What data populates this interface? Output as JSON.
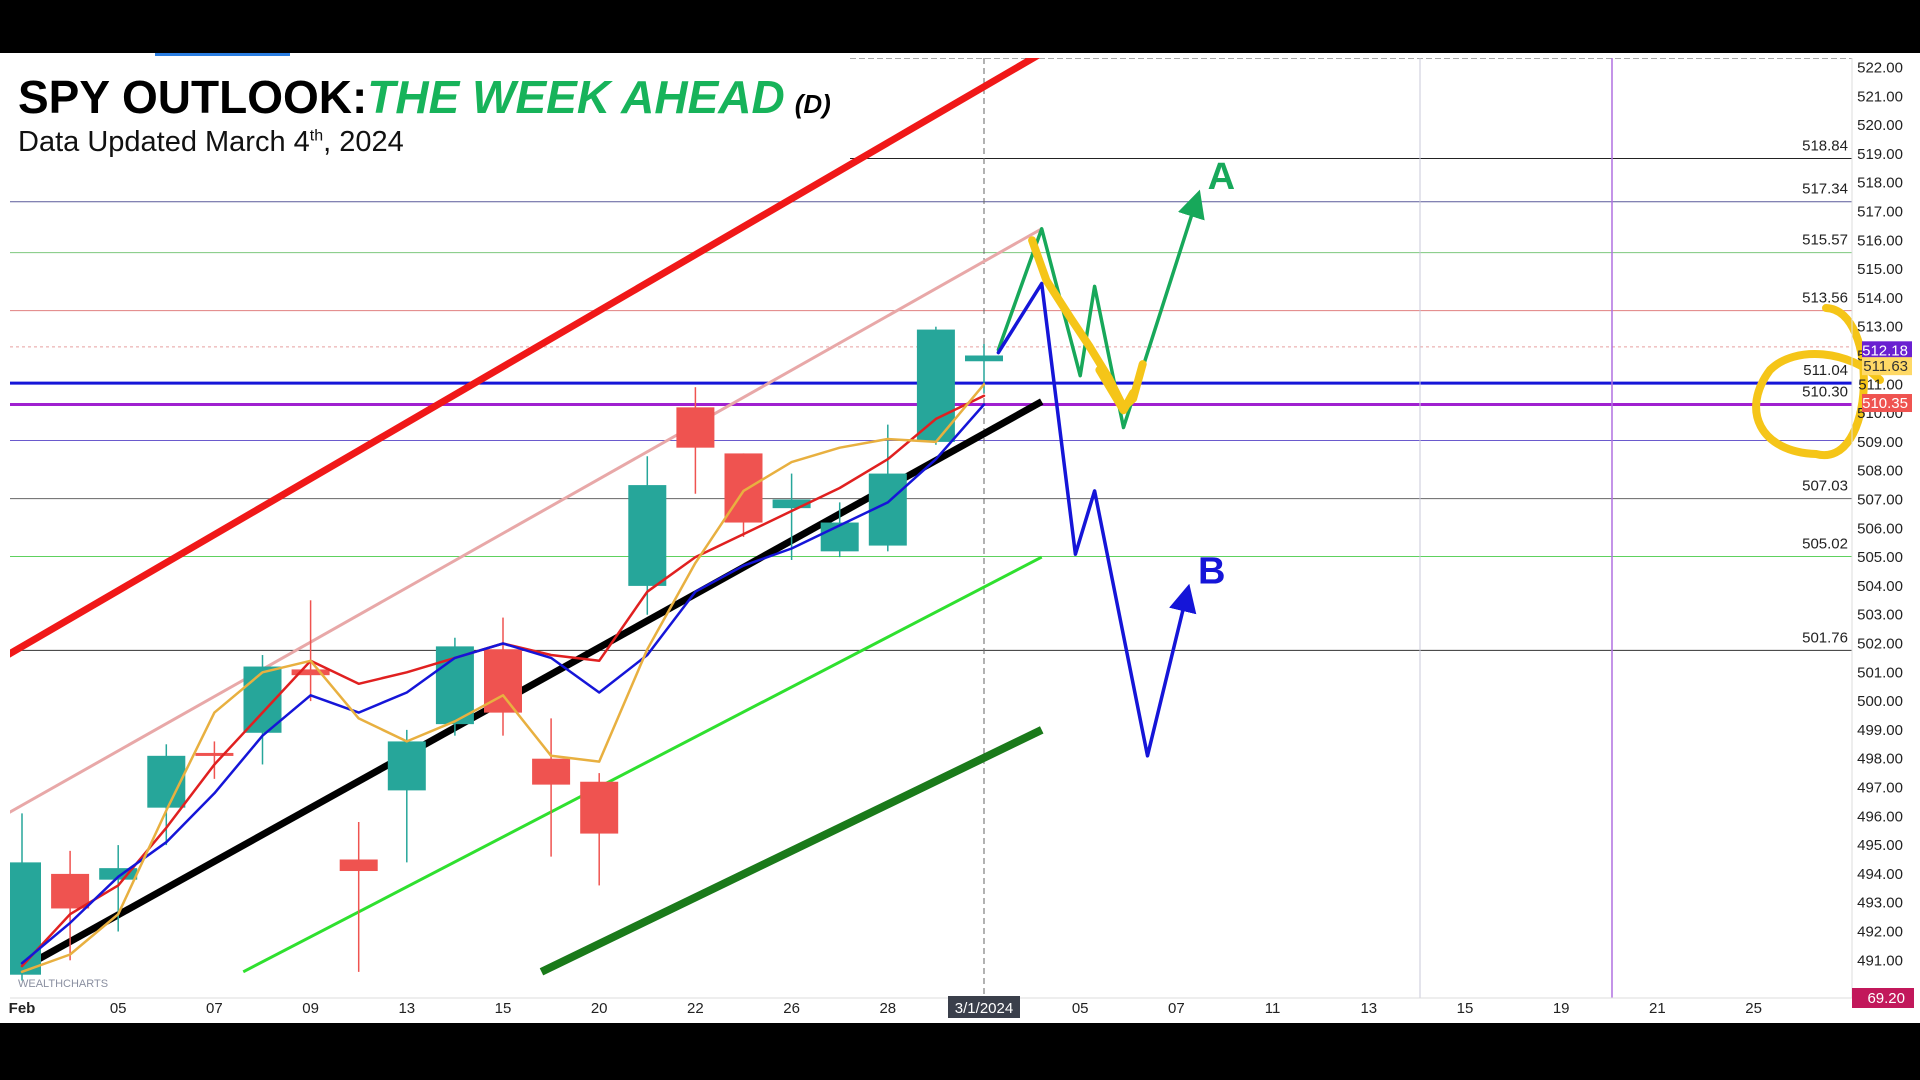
{
  "header": {
    "title_prefix": "SPY OUTLOOK:",
    "title_main": "THE WEEK AHEAD",
    "title_suffix": "(D)",
    "subtitle_before": "Data Updated March 4",
    "subtitle_sup": "th",
    "subtitle_after": ", 2024"
  },
  "watermark": "WEALTHCHARTS",
  "colors": {
    "bull_candle": "#26a69a",
    "bear_candle": "#ef5350",
    "channel_upper": "#f01818",
    "channel_lower": "#1a7a1a",
    "scenario_a": "#17a85a",
    "scenario_b": "#1515d8",
    "highlight": "#f5c518"
  },
  "chart_data": {
    "type": "candlestick",
    "title": "SPY OUTLOOK:THE WEEK AHEAD (D)",
    "ylim": [
      490.6,
      522.5
    ],
    "y_ticks": [
      491,
      492,
      493,
      494,
      495,
      496,
      497,
      498,
      499,
      500,
      501,
      502,
      503,
      504,
      505,
      506,
      507,
      508,
      509,
      510,
      511,
      512,
      513,
      514,
      515,
      516,
      517,
      518,
      519,
      520,
      521,
      522
    ],
    "x_ticks": [
      {
        "i": 0,
        "label": "Feb"
      },
      {
        "i": 2,
        "label": "05"
      },
      {
        "i": 4,
        "label": "07"
      },
      {
        "i": 6,
        "label": "09"
      },
      {
        "i": 8,
        "label": "13"
      },
      {
        "i": 10,
        "label": "15"
      },
      {
        "i": 12,
        "label": "20"
      },
      {
        "i": 14,
        "label": "22"
      },
      {
        "i": 16,
        "label": "26"
      },
      {
        "i": 18,
        "label": "28"
      },
      {
        "i": 20,
        "label": "3/1/2024"
      },
      {
        "i": 22,
        "label": "05"
      },
      {
        "i": 24,
        "label": "07"
      },
      {
        "i": 26,
        "label": "11"
      },
      {
        "i": 28,
        "label": "13"
      },
      {
        "i": 30,
        "label": "15"
      },
      {
        "i": 32,
        "label": "19"
      },
      {
        "i": 34,
        "label": "21"
      },
      {
        "i": 36,
        "label": "25"
      }
    ],
    "candles": [
      {
        "date": "02-01",
        "o": 490.5,
        "h": 496.1,
        "l": 490.3,
        "c": 494.4
      },
      {
        "date": "02-02",
        "o": 494.0,
        "h": 494.8,
        "l": 491.0,
        "c": 492.8
      },
      {
        "date": "02-05",
        "o": 493.8,
        "h": 495.0,
        "l": 492.0,
        "c": 494.2
      },
      {
        "date": "02-06",
        "o": 496.3,
        "h": 498.5,
        "l": 495.0,
        "c": 498.1
      },
      {
        "date": "02-07",
        "o": 498.2,
        "h": 498.6,
        "l": 497.3,
        "c": 498.1
      },
      {
        "date": "02-08",
        "o": 498.9,
        "h": 501.6,
        "l": 497.8,
        "c": 501.2
      },
      {
        "date": "02-09",
        "o": 501.1,
        "h": 503.5,
        "l": 500.0,
        "c": 500.9
      },
      {
        "date": "02-12",
        "o": 494.5,
        "h": 495.8,
        "l": 490.6,
        "c": 494.1
      },
      {
        "date": "02-13",
        "o": 496.9,
        "h": 499.0,
        "l": 494.4,
        "c": 498.6
      },
      {
        "date": "02-14",
        "o": 499.2,
        "h": 502.2,
        "l": 498.8,
        "c": 501.9
      },
      {
        "date": "02-15",
        "o": 501.8,
        "h": 502.9,
        "l": 498.8,
        "c": 499.6
      },
      {
        "date": "02-16",
        "o": 498.0,
        "h": 499.4,
        "l": 494.6,
        "c": 497.1
      },
      {
        "date": "02-20",
        "o": 497.2,
        "h": 497.5,
        "l": 493.6,
        "c": 495.4
      },
      {
        "date": "02-21",
        "o": 504.0,
        "h": 508.5,
        "l": 503.0,
        "c": 507.5
      },
      {
        "date": "02-22",
        "o": 510.2,
        "h": 510.9,
        "l": 507.2,
        "c": 508.8
      },
      {
        "date": "02-23",
        "o": 508.6,
        "h": 508.6,
        "l": 505.7,
        "c": 506.2
      },
      {
        "date": "02-26",
        "o": 506.7,
        "h": 507.9,
        "l": 504.9,
        "c": 507.0
      },
      {
        "date": "02-27",
        "o": 505.2,
        "h": 506.9,
        "l": 505.0,
        "c": 506.2
      },
      {
        "date": "02-28",
        "o": 505.4,
        "h": 509.6,
        "l": 505.2,
        "c": 507.9
      },
      {
        "date": "02-29",
        "o": 509.0,
        "h": 513.0,
        "l": 508.9,
        "c": 512.9
      },
      {
        "date": "03-01",
        "o": 511.8,
        "h": 512.4,
        "l": 510.7,
        "c": 512.0
      }
    ],
    "price_labels": [
      {
        "value": 518.84,
        "label": "518.84"
      },
      {
        "value": 517.34,
        "label": "517.34"
      },
      {
        "value": 515.57,
        "label": "515.57"
      },
      {
        "value": 513.56,
        "label": "513.56"
      },
      {
        "value": 511.04,
        "label": "511.04"
      },
      {
        "value": 510.3,
        "label": "510.30"
      },
      {
        "value": 507.03,
        "label": "507.03"
      },
      {
        "value": 505.02,
        "label": "505.02"
      },
      {
        "value": 501.76,
        "label": "501.76"
      }
    ],
    "axis_badges": [
      {
        "value": 512.18,
        "label": "512.18",
        "color": "#6a1fd1",
        "text_color": "#ffffff"
      },
      {
        "value": 511.63,
        "label": "511.63",
        "color": "#ffd966",
        "text_color": "#333333"
      },
      {
        "value": 510.35,
        "label": "510.35",
        "color": "#ef5350",
        "text_color": "#ffffff"
      }
    ],
    "lower_badge": {
      "label": "69.20",
      "color": "#c2185b"
    },
    "scenarios": [
      {
        "name": "A",
        "points": [
          [
            20.3,
            512.2
          ],
          [
            21.2,
            516.4
          ],
          [
            22.0,
            511.3
          ],
          [
            22.3,
            514.4
          ],
          [
            22.9,
            509.5
          ],
          [
            24.4,
            517.3
          ]
        ]
      },
      {
        "name": "B",
        "points": [
          [
            20.3,
            512.1
          ],
          [
            21.2,
            514.5
          ],
          [
            21.9,
            505.1
          ],
          [
            22.3,
            507.3
          ],
          [
            23.4,
            498.1
          ],
          [
            24.2,
            503.6
          ]
        ]
      }
    ]
  }
}
